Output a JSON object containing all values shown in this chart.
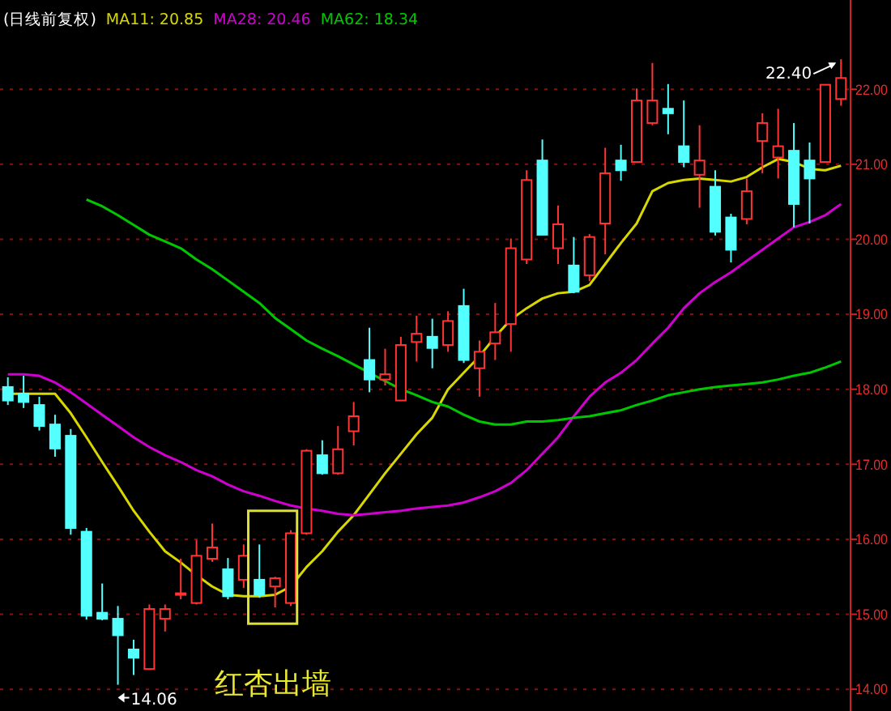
{
  "chart_data": {
    "type": "candlestick",
    "title": "(日线前复权)",
    "legend": "top left",
    "grid": "y",
    "categories": [
      null,
      null,
      null,
      null,
      null,
      null,
      null,
      null,
      null,
      null,
      null,
      null,
      null,
      null,
      null,
      null,
      null,
      null,
      null,
      null,
      null,
      null,
      null,
      null,
      null,
      null,
      null,
      null,
      null,
      null,
      null,
      null,
      null,
      null,
      null,
      null,
      null,
      null,
      null,
      null,
      null,
      null,
      null,
      null,
      null,
      null,
      null,
      null,
      null,
      null,
      null,
      null,
      null,
      null
    ],
    "ylim": [
      13.71,
      23.19
    ],
    "yticks": [
      {
        "value": 14,
        "label": "14.00"
      },
      {
        "value": 15,
        "label": "15.00"
      },
      {
        "value": 16,
        "label": "16.00"
      },
      {
        "value": 17,
        "label": "17.00"
      },
      {
        "value": 18,
        "label": "18.00"
      },
      {
        "value": 19,
        "label": "19.00"
      },
      {
        "value": 20,
        "label": "20.00"
      },
      {
        "value": 21,
        "label": "21.00"
      },
      {
        "value": 22,
        "label": "22.00"
      }
    ],
    "ohlc": [
      [
        18.03,
        18.16,
        17.79,
        17.85
      ],
      [
        17.94,
        18.18,
        17.75,
        17.83
      ],
      [
        17.79,
        17.9,
        17.45,
        17.51
      ],
      [
        17.53,
        17.66,
        17.1,
        17.21
      ],
      [
        17.38,
        17.47,
        16.06,
        16.15
      ],
      [
        16.1,
        16.15,
        14.93,
        14.98
      ],
      [
        15.02,
        15.41,
        14.92,
        14.94
      ],
      [
        14.94,
        15.11,
        14.06,
        14.72
      ],
      [
        14.53,
        14.66,
        14.19,
        14.42
      ],
      [
        14.27,
        15.13,
        14.27,
        15.07
      ],
      [
        14.94,
        15.13,
        14.77,
        15.07
      ],
      [
        15.26,
        15.74,
        15.2,
        15.28
      ],
      [
        15.15,
        15.99,
        15.13,
        15.78
      ],
      [
        15.74,
        16.21,
        15.7,
        15.89
      ],
      [
        15.6,
        15.75,
        15.2,
        15.24
      ],
      [
        15.46,
        15.93,
        15.35,
        15.78
      ],
      [
        15.46,
        15.93,
        15.22,
        15.26
      ],
      [
        15.37,
        15.5,
        15.09,
        15.48
      ],
      [
        15.15,
        16.12,
        15.11,
        16.08
      ],
      [
        16.08,
        17.2,
        16.06,
        17.18
      ],
      [
        17.12,
        17.32,
        16.86,
        16.88
      ],
      [
        16.88,
        17.51,
        16.86,
        17.2
      ],
      [
        17.44,
        17.83,
        17.25,
        17.64
      ],
      [
        18.39,
        18.82,
        17.96,
        18.13
      ],
      [
        18.13,
        18.54,
        18.05,
        18.2
      ],
      [
        17.85,
        18.7,
        17.85,
        18.59
      ],
      [
        18.63,
        18.98,
        18.37,
        18.74
      ],
      [
        18.7,
        18.94,
        18.28,
        18.55
      ],
      [
        18.59,
        19.04,
        18.5,
        18.91
      ],
      [
        19.11,
        19.34,
        18.35,
        18.39
      ],
      [
        18.28,
        18.65,
        17.9,
        18.5
      ],
      [
        18.61,
        19.15,
        18.39,
        18.76
      ],
      [
        18.87,
        20.01,
        18.5,
        19.88
      ],
      [
        19.73,
        20.92,
        19.67,
        20.79
      ],
      [
        21.05,
        21.33,
        20.06,
        20.06
      ],
      [
        19.88,
        20.45,
        19.67,
        20.2
      ],
      [
        19.65,
        20.03,
        19.28,
        19.3
      ],
      [
        19.52,
        20.07,
        19.44,
        20.03
      ],
      [
        20.21,
        21.22,
        19.8,
        20.88
      ],
      [
        21.05,
        21.26,
        20.78,
        20.92
      ],
      [
        21.03,
        22.01,
        21.03,
        21.85
      ],
      [
        21.55,
        22.35,
        21.52,
        21.85
      ],
      [
        21.74,
        22.07,
        21.4,
        21.68
      ],
      [
        21.24,
        21.85,
        20.96,
        21.03
      ],
      [
        20.86,
        21.52,
        20.42,
        21.05
      ],
      [
        20.7,
        20.92,
        20.05,
        20.1
      ],
      [
        20.29,
        20.34,
        19.69,
        19.86
      ],
      [
        20.27,
        20.81,
        20.2,
        20.64
      ],
      [
        21.31,
        21.68,
        20.88,
        21.55
      ],
      [
        21.09,
        21.74,
        20.81,
        21.24
      ],
      [
        21.18,
        21.55,
        20.16,
        20.47
      ],
      [
        21.05,
        21.29,
        20.21,
        20.81
      ],
      [
        21.03,
        22.06,
        21.03,
        22.06
      ],
      [
        21.87,
        22.4,
        21.78,
        22.15
      ]
    ],
    "series": [
      {
        "type": "line",
        "name": "MA11: 20.85",
        "color": "#d8d800",
        "values": [
          17.94,
          17.94,
          17.94,
          17.94,
          17.68,
          17.36,
          17.03,
          16.71,
          16.38,
          16.1,
          15.84,
          15.69,
          15.52,
          15.37,
          15.26,
          15.24,
          15.24,
          15.26,
          15.37,
          15.63,
          15.84,
          16.1,
          16.32,
          16.6,
          16.88,
          17.14,
          17.4,
          17.62,
          18.0,
          18.22,
          18.44,
          18.7,
          18.93,
          19.08,
          19.21,
          19.28,
          19.3,
          19.39,
          19.67,
          19.95,
          20.21,
          20.64,
          20.75,
          20.79,
          20.81,
          20.79,
          20.77,
          20.83,
          20.96,
          21.07,
          21.03,
          20.94,
          20.92,
          20.98
        ]
      },
      {
        "type": "line",
        "name": "MA28: 20.46",
        "color": "#d000d0",
        "values": [
          18.2,
          18.2,
          18.18,
          18.09,
          17.96,
          17.81,
          17.66,
          17.51,
          17.36,
          17.23,
          17.12,
          17.03,
          16.92,
          16.84,
          16.73,
          16.64,
          16.58,
          16.51,
          16.45,
          16.41,
          16.38,
          16.34,
          16.32,
          16.34,
          16.36,
          16.38,
          16.41,
          16.43,
          16.45,
          16.49,
          16.56,
          16.64,
          16.75,
          16.92,
          17.14,
          17.36,
          17.64,
          17.9,
          18.09,
          18.22,
          18.39,
          18.61,
          18.82,
          19.08,
          19.28,
          19.43,
          19.56,
          19.71,
          19.86,
          20.01,
          20.16,
          20.23,
          20.32,
          20.47
        ]
      },
      {
        "type": "line",
        "name": "MA62: 18.34",
        "color": "#00c800",
        "values": [
          null,
          null,
          null,
          null,
          null,
          20.53,
          20.44,
          20.32,
          20.19,
          20.06,
          19.97,
          19.88,
          19.73,
          19.6,
          19.45,
          19.3,
          19.15,
          18.95,
          18.8,
          18.65,
          18.54,
          18.44,
          18.33,
          18.22,
          18.11,
          18.0,
          17.92,
          17.83,
          17.77,
          17.66,
          17.57,
          17.53,
          17.53,
          17.57,
          17.57,
          17.59,
          17.62,
          17.64,
          17.68,
          17.72,
          17.79,
          17.85,
          17.92,
          17.96,
          18.0,
          18.03,
          18.05,
          18.07,
          18.09,
          18.13,
          18.18,
          18.22,
          18.29,
          18.37
        ]
      }
    ],
    "annotations": [
      "22.40",
      "14.06",
      "红杏出墙"
    ],
    "tick_labels": "y"
  }
}
